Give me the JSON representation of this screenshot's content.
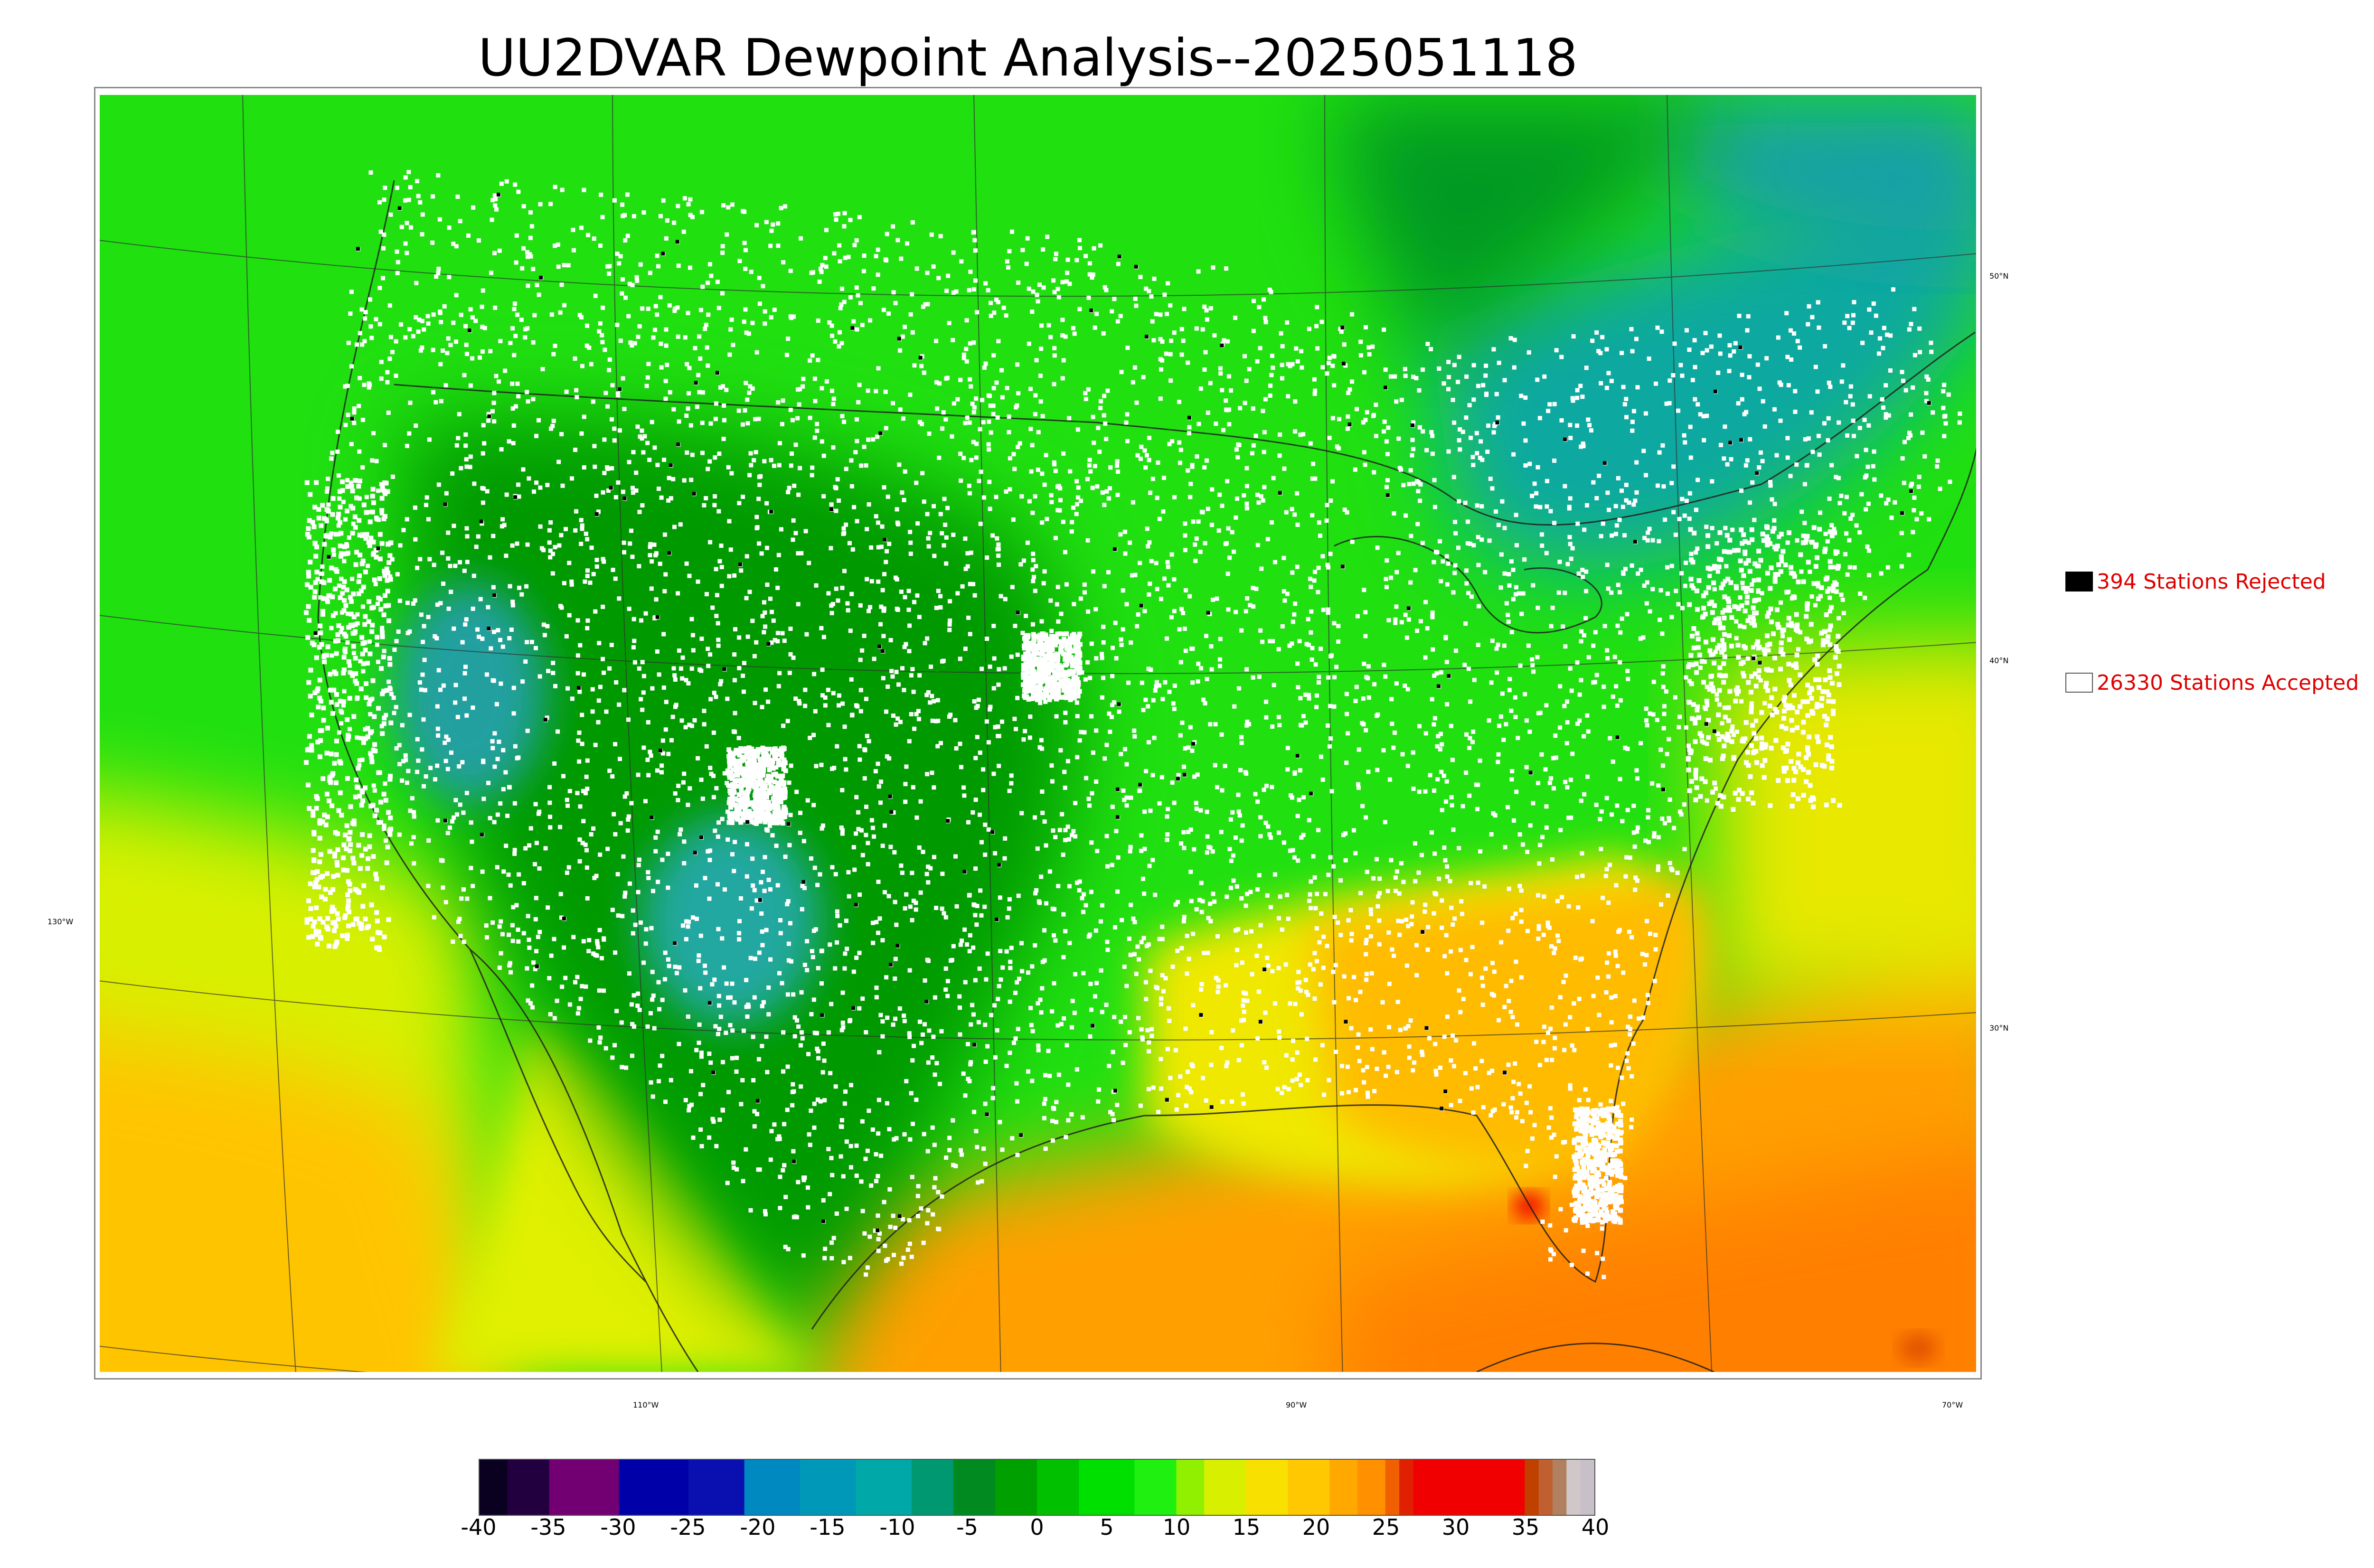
{
  "title": "UU2DVAR Dewpoint Analysis--2025051118",
  "graticule": {
    "lat_labels": [
      {
        "id": "lat-50",
        "text": "50°N"
      },
      {
        "id": "lat-40",
        "text": "40°N"
      },
      {
        "id": "lat-30",
        "text": "30°N"
      }
    ],
    "lon_labels": [
      {
        "id": "lon-130",
        "text": "130°W"
      },
      {
        "id": "lon-110",
        "text": "110°W"
      },
      {
        "id": "lon-90",
        "text": "90°W"
      },
      {
        "id": "lon-70",
        "text": "70°W"
      }
    ]
  },
  "legend": {
    "rejected": {
      "label": "394 Stations Rejected",
      "swatch_color": "#000000"
    },
    "accepted": {
      "label": "26330 Stations Accepted",
      "swatch_color": "#ffffff"
    }
  },
  "colorbar": {
    "ticks": [
      "-40",
      "-35",
      "-30",
      "-25",
      "-20",
      "-15",
      "-10",
      "-5",
      "0",
      "5",
      "10",
      "15",
      "20",
      "25",
      "30",
      "35",
      "40"
    ],
    "min": -40,
    "max": 40,
    "bands": [
      {
        "from": -40,
        "to": -38,
        "color": "#0a0020"
      },
      {
        "from": -38,
        "to": -35,
        "color": "#220040"
      },
      {
        "from": -35,
        "to": -30,
        "color": "#720072"
      },
      {
        "from": -30,
        "to": -25,
        "color": "#0000a8"
      },
      {
        "from": -25,
        "to": -21,
        "color": "#0a10b0"
      },
      {
        "from": -21,
        "to": -17,
        "color": "#0088c0"
      },
      {
        "from": -17,
        "to": -13,
        "color": "#0098b8"
      },
      {
        "from": -13,
        "to": -9,
        "color": "#00a8a8"
      },
      {
        "from": -9,
        "to": -6,
        "color": "#009870"
      },
      {
        "from": -6,
        "to": -3,
        "color": "#008a20"
      },
      {
        "from": -3,
        "to": 0,
        "color": "#00a000"
      },
      {
        "from": 0,
        "to": 3,
        "color": "#00c000"
      },
      {
        "from": 3,
        "to": 7,
        "color": "#00e000"
      },
      {
        "from": 7,
        "to": 10,
        "color": "#20f010"
      },
      {
        "from": 10,
        "to": 12,
        "color": "#90f000"
      },
      {
        "from": 12,
        "to": 15,
        "color": "#d8f000"
      },
      {
        "from": 15,
        "to": 18,
        "color": "#f8e000"
      },
      {
        "from": 18,
        "to": 21,
        "color": "#ffc800"
      },
      {
        "from": 21,
        "to": 23,
        "color": "#ffa800"
      },
      {
        "from": 23,
        "to": 25,
        "color": "#ff9000"
      },
      {
        "from": 25,
        "to": 26,
        "color": "#f06000"
      },
      {
        "from": 26,
        "to": 27,
        "color": "#e02000"
      },
      {
        "from": 27,
        "to": 35,
        "color": "#f00000"
      },
      {
        "from": 35,
        "to": 36,
        "color": "#c04000"
      },
      {
        "from": 36,
        "to": 37,
        "color": "#c06030"
      },
      {
        "from": 37,
        "to": 38,
        "color": "#b08060"
      },
      {
        "from": 38,
        "to": 39,
        "color": "#d0c8c8"
      },
      {
        "from": 39,
        "to": 40,
        "color": "#c8c0c8"
      }
    ]
  },
  "colors": {
    "land_green": "#00c000",
    "dark_green": "#008a00",
    "bright_green": "#20ee10",
    "teal": "#10a890",
    "yellow_green": "#c8f000",
    "yellow": "#f8e000",
    "orange": "#ffa800",
    "deep_orange": "#ff8000",
    "red": "#f00000",
    "legend_text": "#e00000"
  }
}
